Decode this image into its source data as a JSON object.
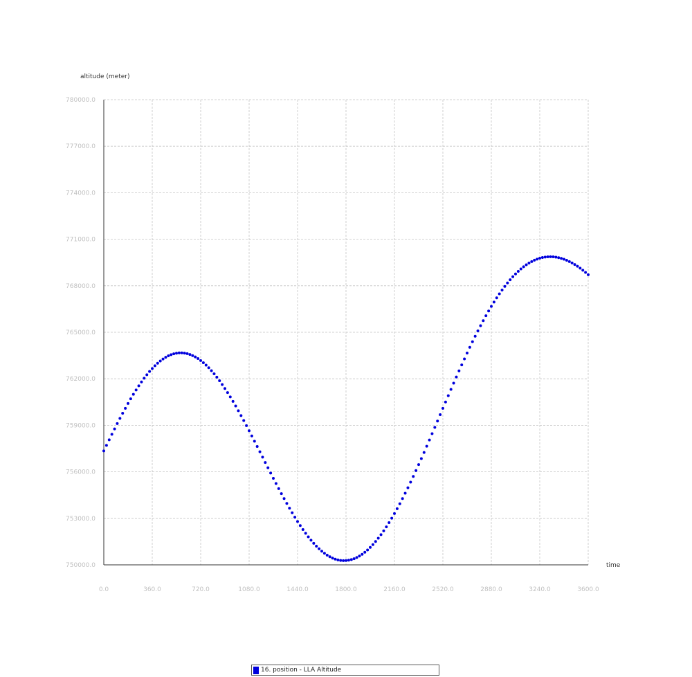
{
  "chart_data": {
    "type": "scatter",
    "ylabel": "altitude (meter)",
    "xlabel": "time",
    "xlim": [
      0,
      3600
    ],
    "ylim": [
      750000,
      780000
    ],
    "x_ticks": [
      "0.0",
      "360.0",
      "720.0",
      "1080.0",
      "1440.0",
      "1800.0",
      "2160.0",
      "2520.0",
      "2880.0",
      "3240.0",
      "3600.0"
    ],
    "y_ticks": [
      "750000.0",
      "753000.0",
      "756000.0",
      "759000.0",
      "762000.0",
      "765000.0",
      "768000.0",
      "771000.0",
      "774000.0",
      "777000.0",
      "780000.0"
    ],
    "grid": true,
    "legend_position": "bottom-center",
    "series": [
      {
        "name": "16. position - LLA Altitude",
        "color": "#0000dd",
        "x": [
          0,
          20,
          40,
          60,
          80,
          100,
          120,
          140,
          160,
          180,
          200,
          220,
          240,
          260,
          280,
          300,
          320,
          340,
          360,
          380,
          400,
          420,
          440,
          460,
          480,
          500,
          520,
          540,
          560,
          580,
          600,
          620,
          640,
          660,
          680,
          700,
          720,
          740,
          760,
          780,
          800,
          820,
          840,
          860,
          880,
          900,
          920,
          940,
          960,
          980,
          1000,
          1020,
          1040,
          1060,
          1080,
          1100,
          1120,
          1140,
          1160,
          1180,
          1200,
          1220,
          1240,
          1260,
          1280,
          1300,
          1320,
          1340,
          1360,
          1380,
          1400,
          1420,
          1440,
          1460,
          1480,
          1500,
          1520,
          1540,
          1560,
          1580,
          1600,
          1620,
          1640,
          1660,
          1680,
          1700,
          1720,
          1740,
          1760,
          1780,
          1800,
          1820,
          1840,
          1860,
          1880,
          1900,
          1920,
          1940,
          1960,
          1980,
          2000,
          2020,
          2040,
          2060,
          2080,
          2100,
          2120,
          2140,
          2160,
          2180,
          2200,
          2220,
          2240,
          2260,
          2280,
          2300,
          2320,
          2340,
          2360,
          2380,
          2400,
          2420,
          2440,
          2460,
          2480,
          2500,
          2520,
          2540,
          2560,
          2580,
          2600,
          2620,
          2640,
          2660,
          2680,
          2700,
          2720,
          2740,
          2760,
          2780,
          2800,
          2820,
          2840,
          2860,
          2880,
          2900,
          2920,
          2940,
          2960,
          2980,
          3000,
          3020,
          3040,
          3060,
          3080,
          3100,
          3120,
          3140,
          3160,
          3180,
          3200,
          3220,
          3240,
          3260,
          3280,
          3300,
          3320,
          3340,
          3360,
          3380,
          3400,
          3420,
          3440,
          3460,
          3480,
          3500,
          3520,
          3540,
          3560,
          3580,
          3600
        ],
        "y": [
          757350,
          757709,
          758066,
          758419,
          758768,
          759111,
          759447,
          759776,
          760096,
          760408,
          760708,
          760999,
          761277,
          761543,
          761796,
          762035,
          762260,
          762470,
          762664,
          762843,
          763005,
          763150,
          763277,
          763388,
          763480,
          763555,
          763612,
          763650,
          763670,
          763672,
          763655,
          763620,
          763567,
          763496,
          763407,
          763301,
          763178,
          763038,
          762882,
          762710,
          762522,
          762320,
          762103,
          761873,
          761630,
          761375,
          761108,
          760830,
          760542,
          760245,
          759939,
          759626,
          759306,
          758980,
          758649,
          758314,
          757975,
          757634,
          757291,
          756948,
          756604,
          756261,
          755920,
          755582,
          755247,
          754917,
          754592,
          754273,
          753961,
          753657,
          753361,
          753074,
          752797,
          752531,
          752277,
          752035,
          751807,
          751592,
          751392,
          751207,
          751037,
          750884,
          750746,
          750626,
          750523,
          750437,
          750369,
          750319,
          750287,
          750273,
          750277,
          750299,
          750340,
          750398,
          750475,
          750570,
          750683,
          750813,
          750961,
          751126,
          751307,
          751505,
          751719,
          751948,
          752192,
          752451,
          752724,
          753010,
          753309,
          753620,
          753942,
          754275,
          754619,
          754972,
          755334,
          755704,
          756081,
          756465,
          756855,
          757250,
          757649,
          758052,
          758458,
          758866,
          759275,
          759685,
          760095,
          760504,
          760911,
          761316,
          761718,
          762116,
          762510,
          762898,
          763281,
          763658,
          764027,
          764389,
          764743,
          765088,
          765424,
          765750,
          766066,
          766372,
          766666,
          766949,
          767220,
          767479,
          767725,
          767959,
          768180,
          768388,
          768582,
          768763,
          768930,
          769084,
          769224,
          769350,
          769462,
          769561,
          769646,
          769717,
          769775,
          769819,
          769850,
          769868,
          769873,
          769865,
          769845,
          769812,
          769767,
          769710,
          769641,
          769561,
          769470,
          769368,
          769256,
          769134,
          769002,
          768862,
          768713
        ]
      }
    ]
  }
}
